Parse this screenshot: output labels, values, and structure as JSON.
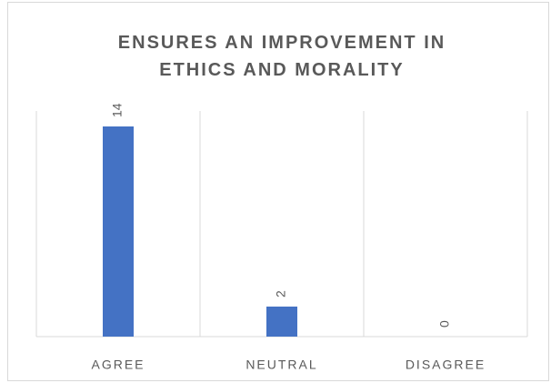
{
  "chart_data": {
    "type": "bar",
    "title": "ENSURES AN IMPROVEMENT IN ETHICS AND MORALITY",
    "categories": [
      "AGREE",
      "NEUTRAL",
      "DISAGREE"
    ],
    "values": [
      14,
      2,
      0
    ],
    "color": "#4472c4",
    "data_labels": true
  }
}
